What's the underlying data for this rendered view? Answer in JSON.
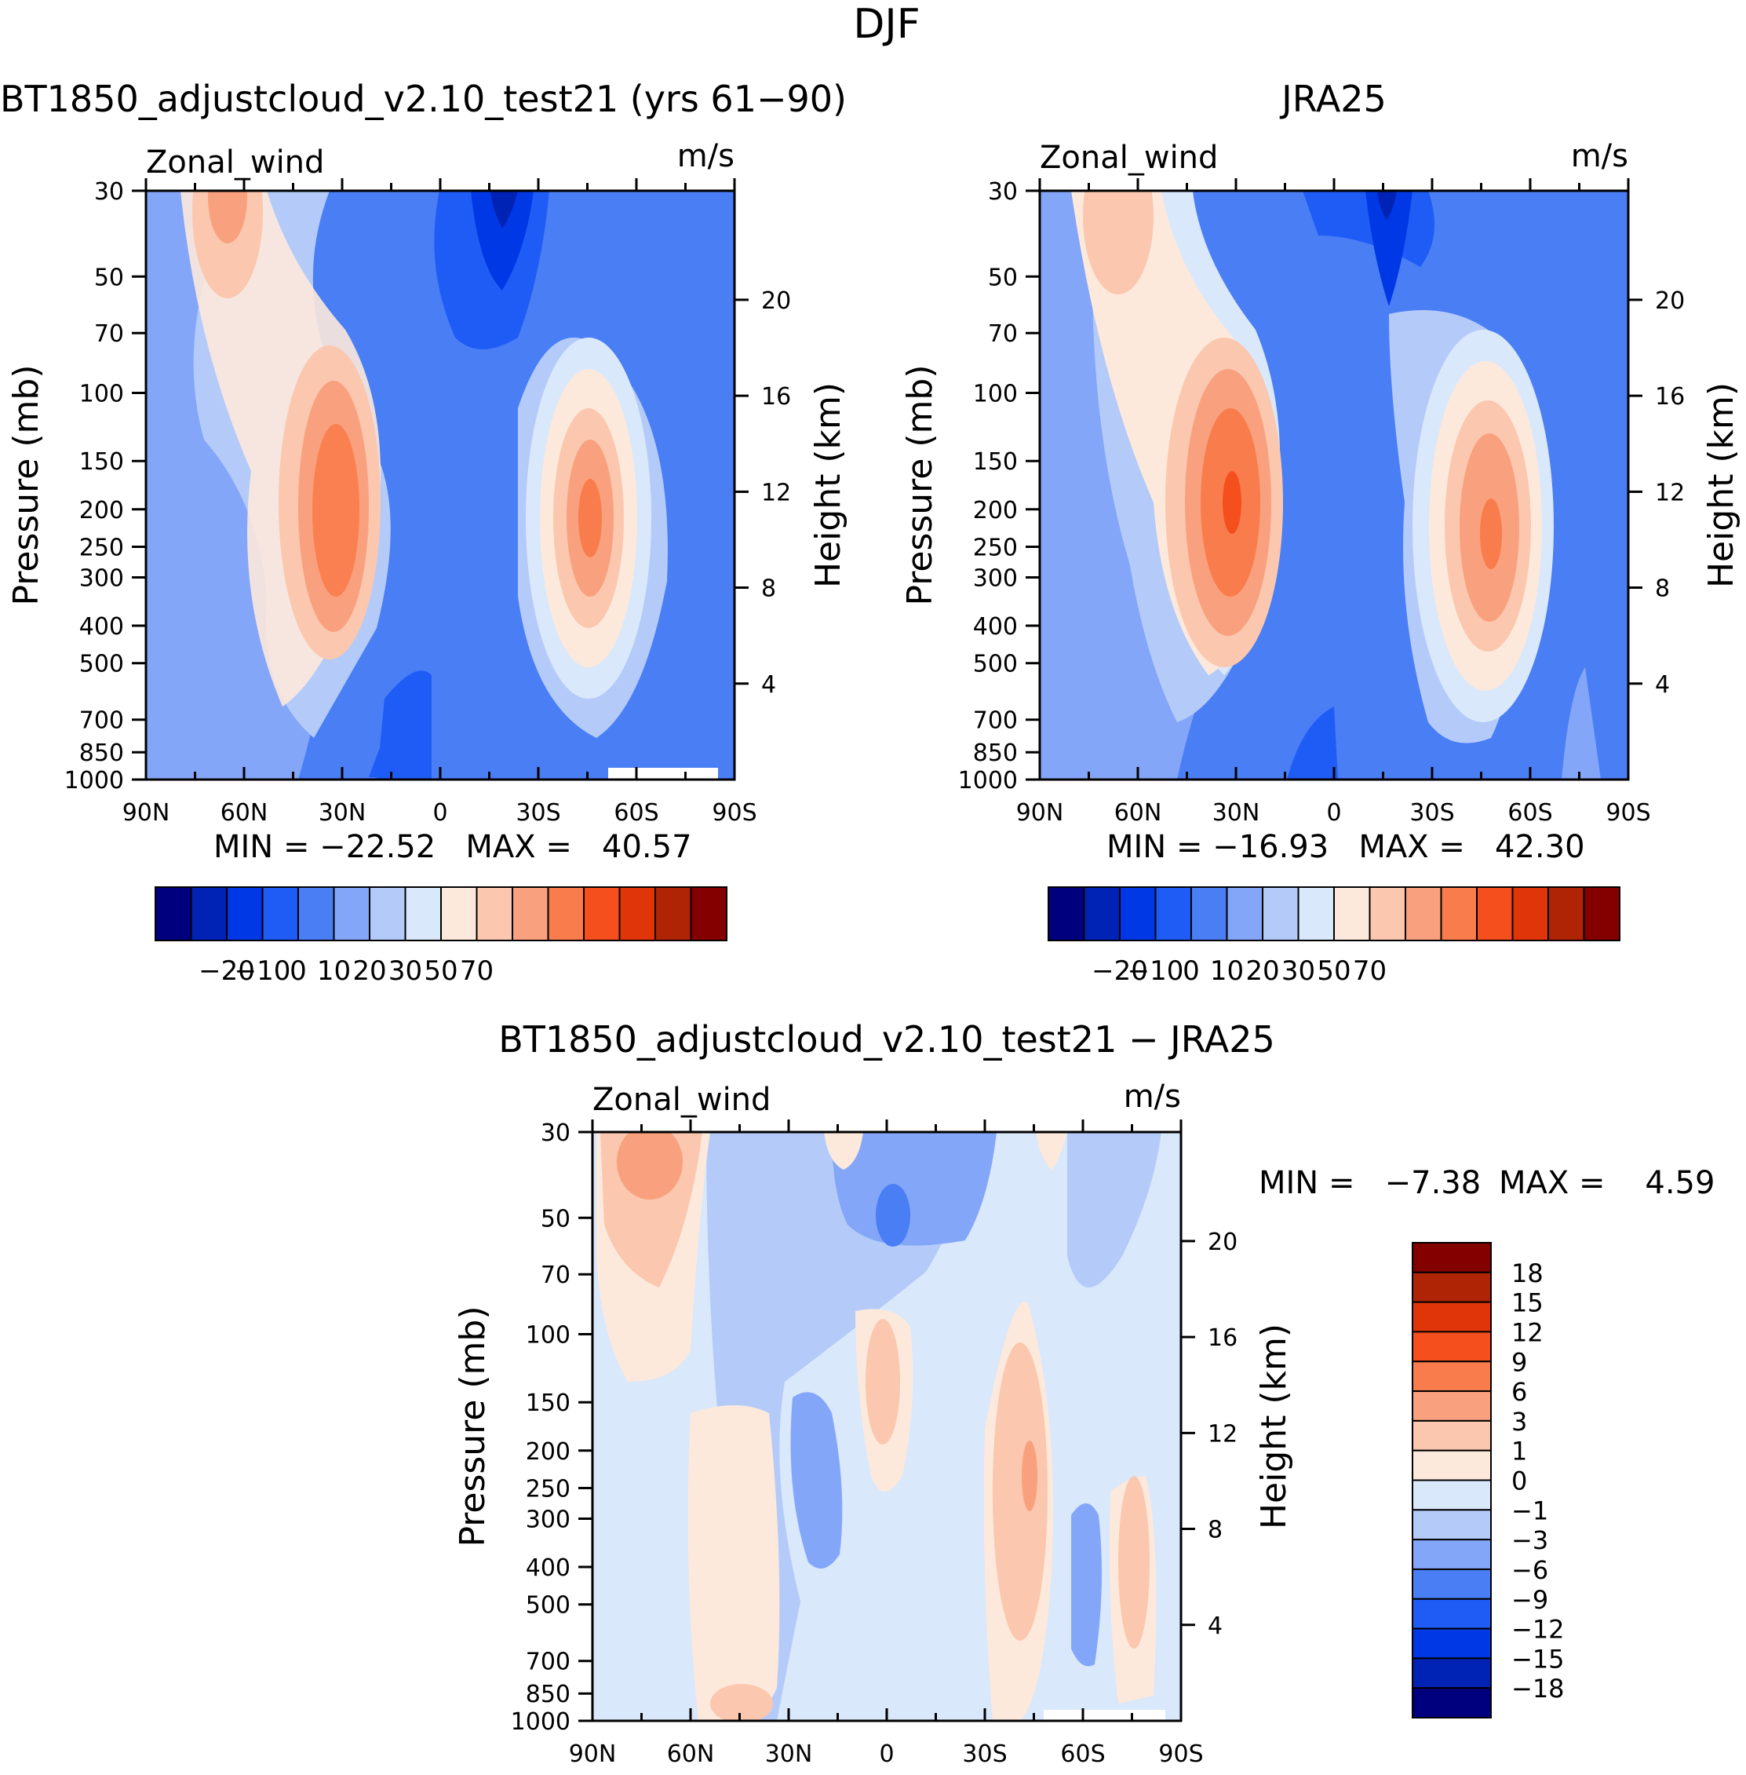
{
  "page_title": "DJF",
  "chart_data": [
    {
      "type": "heatmap",
      "subtype": "latitude-pressure filled contour",
      "title": "BT1850_adjustcloud_v2.10_test21 (yrs 61−90)",
      "variable_label": "Zonal_wind",
      "units_label": "m/s",
      "xlabel": "",
      "ylabel": "Pressure (mb)",
      "y2label": "Height (km)",
      "x_ticks": [
        "90N",
        "60N",
        "30N",
        "0",
        "30S",
        "60S",
        "90S"
      ],
      "y_ticks": [
        "30",
        "50",
        "70",
        "100",
        "150",
        "200",
        "250",
        "300",
        "400",
        "500",
        "700",
        "850",
        "1000"
      ],
      "y2_ticks": [
        "20",
        "16",
        "12",
        "8",
        "4"
      ],
      "stats": "MIN = −22.52   MAX =   40.57",
      "min": -22.52,
      "max": 40.57,
      "features": [
        {
          "lat": 30,
          "p": 200,
          "value": 40
        },
        {
          "lat": -45,
          "p": 220,
          "value": 35
        },
        {
          "lat": -18,
          "p": 30,
          "value": -20
        },
        {
          "lat": 68,
          "p": 35,
          "value": 20
        }
      ]
    },
    {
      "type": "heatmap",
      "subtype": "latitude-pressure filled contour",
      "title": "JRA25",
      "variable_label": "Zonal_wind",
      "units_label": "m/s",
      "xlabel": "",
      "ylabel": "Pressure (mb)",
      "y2label": "Height (km)",
      "x_ticks": [
        "90N",
        "60N",
        "30N",
        "0",
        "30S",
        "60S",
        "90S"
      ],
      "y_ticks": [
        "30",
        "50",
        "70",
        "100",
        "150",
        "200",
        "250",
        "300",
        "400",
        "500",
        "700",
        "850",
        "1000"
      ],
      "y2_ticks": [
        "20",
        "16",
        "12",
        "8",
        "4"
      ],
      "stats": "MIN = −16.93   MAX =   42.30",
      "min": -16.93,
      "max": 42.3,
      "features": [
        {
          "lat": 30,
          "p": 200,
          "value": 42
        },
        {
          "lat": -48,
          "p": 250,
          "value": 36
        },
        {
          "lat": -15,
          "p": 30,
          "value": -16
        },
        {
          "lat": 65,
          "p": 35,
          "value": 18
        }
      ]
    },
    {
      "type": "heatmap",
      "subtype": "latitude-pressure filled contour (difference)",
      "title": "BT1850_adjustcloud_v2.10_test21 − JRA25",
      "variable_label": "Zonal_wind",
      "units_label": "m/s",
      "xlabel": "",
      "ylabel": "Pressure (mb)",
      "y2label": "Height (km)",
      "x_ticks": [
        "90N",
        "60N",
        "30N",
        "0",
        "30S",
        "60S",
        "90S"
      ],
      "y_ticks": [
        "30",
        "50",
        "70",
        "100",
        "150",
        "200",
        "250",
        "300",
        "400",
        "500",
        "700",
        "850",
        "1000"
      ],
      "y2_ticks": [
        "20",
        "16",
        "12",
        "8",
        "4"
      ],
      "stats_min": "MIN =   −7.38",
      "stats_max": "MAX =    4.59",
      "min": -7.38,
      "max": 4.59,
      "features": [
        {
          "lat": 70,
          "p": 35,
          "value": 4
        },
        {
          "lat": -45,
          "p": 220,
          "value": 4
        },
        {
          "lat": 2,
          "p": 55,
          "value": -7
        },
        {
          "lat": -60,
          "p": 300,
          "value": -6
        }
      ]
    }
  ],
  "colorbar_main": {
    "colors": [
      "#00007f",
      "#0022b5",
      "#0038e6",
      "#1f5cf5",
      "#4a7ef5",
      "#84a6f8",
      "#b4cbfa",
      "#d9e8fb",
      "#fde9dc",
      "#fbc7ae",
      "#f9a17e",
      "#f97c4c",
      "#f54f1e",
      "#e03508",
      "#b02406",
      "#840000"
    ],
    "labels": [
      "−20",
      "−10",
      "0",
      "10",
      "20",
      "30",
      "50",
      "70"
    ]
  },
  "colorbar_diff": {
    "colors": [
      "#840000",
      "#b02406",
      "#e03508",
      "#f54f1e",
      "#f97c4c",
      "#f9a17e",
      "#fbc7ae",
      "#fde9dc",
      "#d9e8fb",
      "#b4cbfa",
      "#84a6f8",
      "#4a7ef5",
      "#1f5cf5",
      "#0038e6",
      "#0022b5",
      "#00007f"
    ],
    "labels": [
      "18",
      "15",
      "12",
      "9",
      "6",
      "3",
      "1",
      "0",
      "−1",
      "−3",
      "−6",
      "−9",
      "−12",
      "−15",
      "−18"
    ]
  }
}
